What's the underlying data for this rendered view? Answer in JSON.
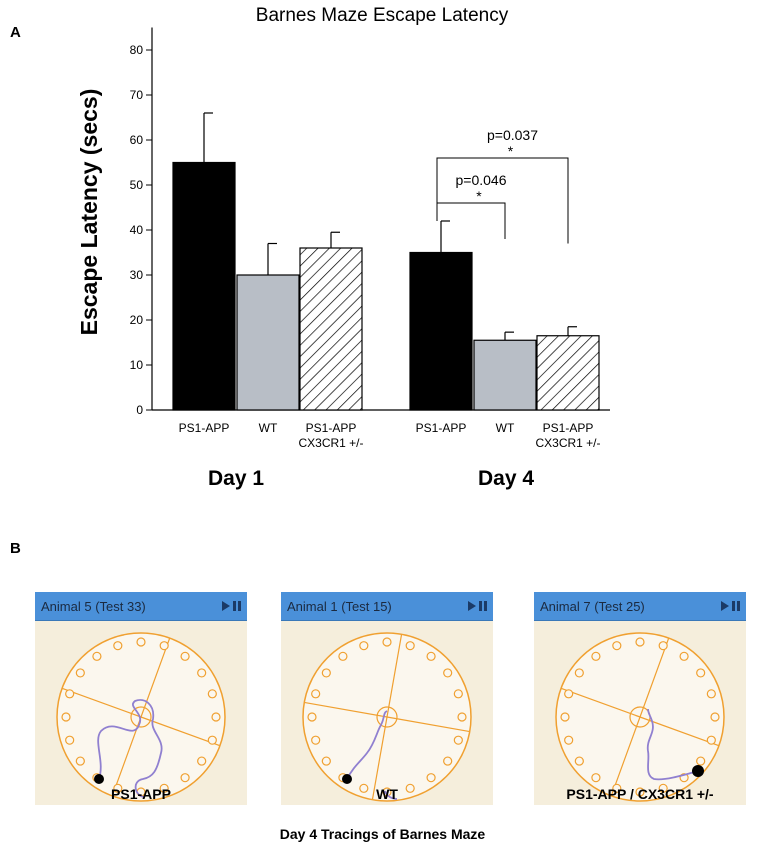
{
  "panels": {
    "a_label": "A",
    "b_label": "B"
  },
  "chart_data": {
    "type": "bar",
    "title": "Barnes Maze Escape Latency",
    "ylabel": "Escape Latency (secs)",
    "xlabel": "",
    "ylim": [
      0,
      85
    ],
    "yticks": [
      0,
      10,
      20,
      30,
      40,
      50,
      60,
      70,
      80
    ],
    "groups": [
      {
        "name": "Day 1",
        "bars": [
          {
            "label": "PS1-APP",
            "label2": "",
            "value": 55,
            "error": 11,
            "style": "black"
          },
          {
            "label": "WT",
            "label2": "",
            "value": 30,
            "error": 7,
            "style": "gray"
          },
          {
            "label": "PS1-APP",
            "label2": "CX3CR1 +/-",
            "value": 36,
            "error": 3.5,
            "style": "hatch"
          }
        ]
      },
      {
        "name": "Day 4",
        "bars": [
          {
            "label": "PS1-APP",
            "label2": "",
            "value": 35,
            "error": 7,
            "style": "black"
          },
          {
            "label": "WT",
            "label2": "",
            "value": 15.5,
            "error": 1.8,
            "style": "gray"
          },
          {
            "label": "PS1-APP",
            "label2": "CX3CR1 +/-",
            "value": 16.5,
            "error": 2,
            "style": "hatch"
          }
        ]
      }
    ],
    "annotations": [
      {
        "text": "p=0.046",
        "star": "*",
        "from_bar": 3,
        "to_bar": 4,
        "y": 46,
        "end_y": 38,
        "start_y": 42
      },
      {
        "text": "p=0.037",
        "star": "*",
        "from_bar": 3,
        "to_bar": 5,
        "y": 56,
        "end_y": 37,
        "start_y": 46
      }
    ]
  },
  "mazes": [
    {
      "header": "Animal 5 (Test 33)",
      "label": "PS1-APP"
    },
    {
      "header": "Animal 1 (Test 15)",
      "label": "WT"
    },
    {
      "header": "Animal 7 (Test 25)",
      "label": "PS1-APP / CX3CR1 +/-"
    }
  ],
  "footer": "Day 4 Tracings of Barnes Maze",
  "colors": {
    "black_bar": "#000000",
    "gray_bar": "#b8bec6",
    "maze_orange": "#f0a030",
    "trace": "#9080d0",
    "header_blue": "#4a90d9"
  }
}
